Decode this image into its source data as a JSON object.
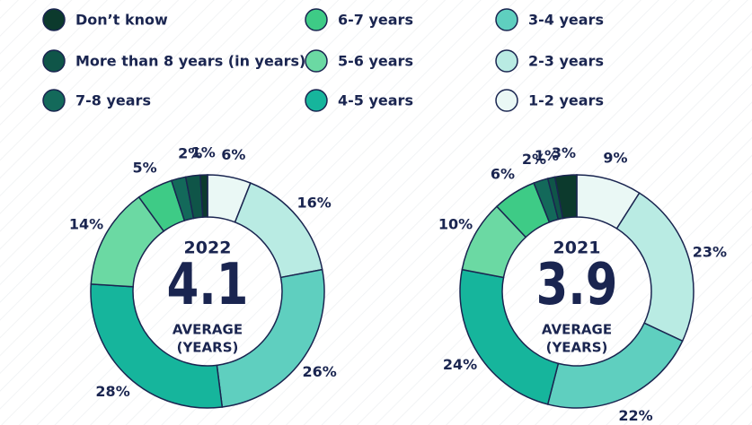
{
  "chart_data": [
    {
      "type": "donut",
      "title": "2022",
      "average": 4.1,
      "average_label": [
        "AVERAGE",
        "(YEARS)"
      ],
      "categories": [
        "1-2 years",
        "2-3 years",
        "3-4 years",
        "4-5 years",
        "5-6 years",
        "6-7 years",
        "7-8 years",
        "More than 8 years (in years)",
        "Don’t know"
      ],
      "colors": [
        "#eaf8f5",
        "#b9ebe3",
        "#5fcfbf",
        "#16b59c",
        "#6bd9a3",
        "#3ecb86",
        "#13695a",
        "#0f5548",
        "#0c3a2d"
      ],
      "values": [
        6,
        16,
        26,
        28,
        14,
        5,
        2,
        2,
        1
      ],
      "value_labels": [
        "6%",
        "16%",
        "26%",
        "28%",
        "14%",
        "5%",
        null,
        "2%",
        "1%"
      ]
    },
    {
      "type": "donut",
      "title": "2021",
      "average": 3.9,
      "average_label": [
        "AVERAGE",
        "(YEARS)"
      ],
      "categories": [
        "1-2 years",
        "2-3 years",
        "3-4 years",
        "4-5 years",
        "5-6 years",
        "6-7 years",
        "7-8 years",
        "More than 8 years (in years)",
        "Don’t know"
      ],
      "colors": [
        "#eaf8f5",
        "#b9ebe3",
        "#5fcfbf",
        "#16b59c",
        "#6bd9a3",
        "#3ecb86",
        "#13695a",
        "#0f5548",
        "#0c3a2d"
      ],
      "values": [
        9,
        23,
        22,
        24,
        10,
        6,
        2,
        1,
        3
      ],
      "value_labels": [
        "9%",
        "23%",
        "22%",
        "24%",
        "10%",
        "6%",
        "2%",
        "1%",
        "3%"
      ]
    }
  ]
}
